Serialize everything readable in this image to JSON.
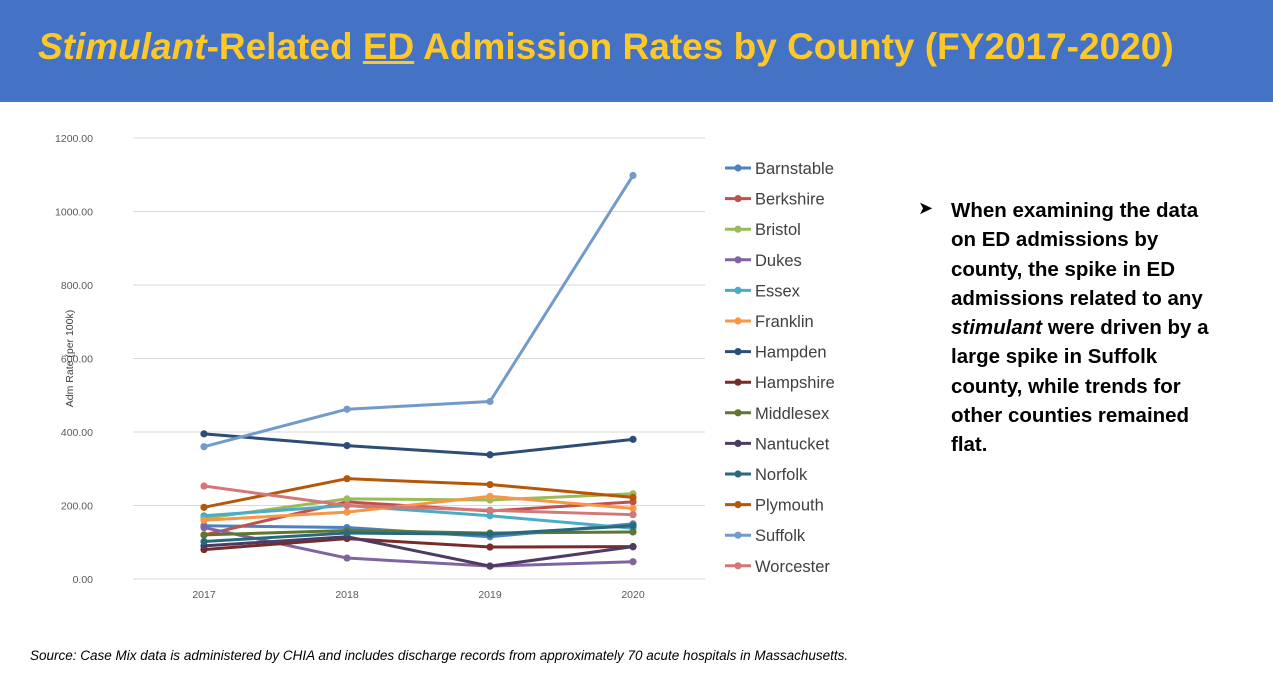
{
  "title": {
    "part1": "Stimulant",
    "part2": "-Related ",
    "part3": "ED",
    "part4": " Admission Rates by County (FY2017-2020)"
  },
  "bullet": {
    "text1": "When examining the data on ED admissions by county, the spike in ED admissions related to any ",
    "text2": "stimulant",
    "text3": " were driven by a large spike in Suffolk county, while trends for other counties remained flat."
  },
  "source": "Source: Case Mix data is administered by CHIA and includes discharge records from approximately 70 acute hospitals in Massachusetts.",
  "chart_data": {
    "type": "line",
    "title": "",
    "xlabel": "",
    "ylabel": "Adm Rate (per 100k)",
    "categories": [
      "2017",
      "2018",
      "2019",
      "2020"
    ],
    "ylim": [
      0,
      1200
    ],
    "yticks": [
      0,
      200,
      400,
      600,
      800,
      1000,
      1200
    ],
    "ytick_labels": [
      "0.00",
      "200.00",
      "400.00",
      "600.00",
      "800.00",
      "1000.00",
      "1200.00"
    ],
    "grid": true,
    "legend_position": "right",
    "series": [
      {
        "name": "Barnstable",
        "color": "#4e81bd",
        "values": [
          145,
          140,
          115,
          150
        ]
      },
      {
        "name": "Berkshire",
        "color": "#c0504d",
        "values": [
          120,
          210,
          185,
          210
        ]
      },
      {
        "name": "Bristol",
        "color": "#9bbb59",
        "values": [
          165,
          218,
          215,
          232
        ]
      },
      {
        "name": "Dukes",
        "color": "#8064a2",
        "values": [
          140,
          57,
          35,
          47
        ]
      },
      {
        "name": "Essex",
        "color": "#4bacc6",
        "values": [
          172,
          200,
          172,
          138
        ]
      },
      {
        "name": "Franklin",
        "color": "#f79646",
        "values": [
          160,
          182,
          225,
          192
        ]
      },
      {
        "name": "Hampden",
        "color": "#2c4d75",
        "values": [
          395,
          363,
          338,
          380
        ]
      },
      {
        "name": "Hampshire",
        "color": "#772c2a",
        "values": [
          80,
          110,
          87,
          88
        ]
      },
      {
        "name": "Middlesex",
        "color": "#5f7530",
        "values": [
          120,
          132,
          125,
          128
        ]
      },
      {
        "name": "Nantucket",
        "color": "#4d3b62",
        "values": [
          90,
          115,
          35,
          88
        ]
      },
      {
        "name": "Norfolk",
        "color": "#276a7c",
        "values": [
          102,
          125,
          122,
          145
        ]
      },
      {
        "name": "Plymouth",
        "color": "#b65708",
        "values": [
          195,
          273,
          257,
          222
        ]
      },
      {
        "name": "Suffolk",
        "color": "#729aca",
        "values": [
          360,
          462,
          483,
          1098
        ]
      },
      {
        "name": "Worcester",
        "color": "#d47877",
        "values": [
          253,
          200,
          187,
          175
        ]
      }
    ]
  }
}
